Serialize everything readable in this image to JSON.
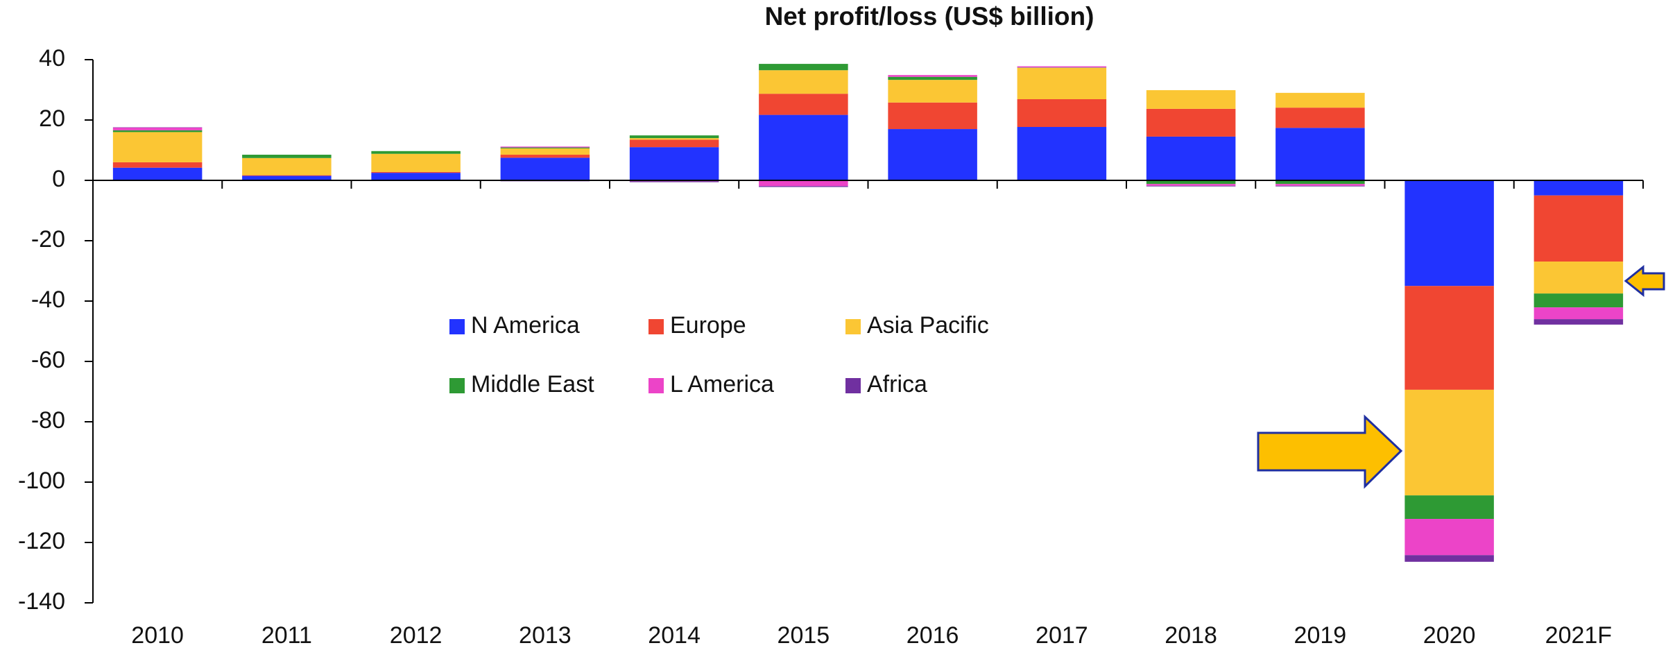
{
  "chart_data": {
    "type": "stacked_bar",
    "title": "Net profit/loss (US$ billion)",
    "categories": [
      "2010",
      "2011",
      "2012",
      "2013",
      "2014",
      "2015",
      "2016",
      "2017",
      "2018",
      "2019",
      "2020",
      "2021F"
    ],
    "series": [
      {
        "name": "N America",
        "color": "#2233ff",
        "values": [
          4.2,
          1.5,
          2.5,
          7.5,
          11,
          21.7,
          17,
          17.7,
          14.5,
          17.4,
          -35,
          -5
        ]
      },
      {
        "name": "Europe",
        "color": "#f04632",
        "values": [
          1.8,
          0.2,
          0.3,
          1.0,
          2.5,
          7,
          8.8,
          9.2,
          9.2,
          6.7,
          -34.4,
          -21.9
        ]
      },
      {
        "name": "Asia Pacific",
        "color": "#fbc634",
        "values": [
          10,
          5.7,
          6,
          2.1,
          0.5,
          7.8,
          7.5,
          10.4,
          6.2,
          4.9,
          -35,
          -10.6
        ]
      },
      {
        "name": "Middle East",
        "color": "#2e9a34",
        "values": [
          0.6,
          1.1,
          0.9,
          0.3,
          0.9,
          2.1,
          1.0,
          0.1,
          -1.2,
          -1.2,
          -7.8,
          -4.6
        ]
      },
      {
        "name": "L America",
        "color": "#ec44c8",
        "values": [
          0.9,
          0,
          0,
          0.3,
          -0.3,
          -1.9,
          0.6,
          0.4,
          -0.6,
          -0.6,
          -12,
          -3.9
        ]
      },
      {
        "name": "Africa",
        "color": "#7030a0",
        "values": [
          0.1,
          0,
          0,
          -0.3,
          -0.3,
          -0.3,
          -0.2,
          0,
          -0.2,
          -0.2,
          -2.2,
          -1.8
        ]
      }
    ],
    "ylim": [
      -140,
      40
    ],
    "yticks": [
      -140,
      -120,
      -100,
      -80,
      -60,
      -40,
      -20,
      0,
      20,
      40
    ],
    "grid": false
  }
}
